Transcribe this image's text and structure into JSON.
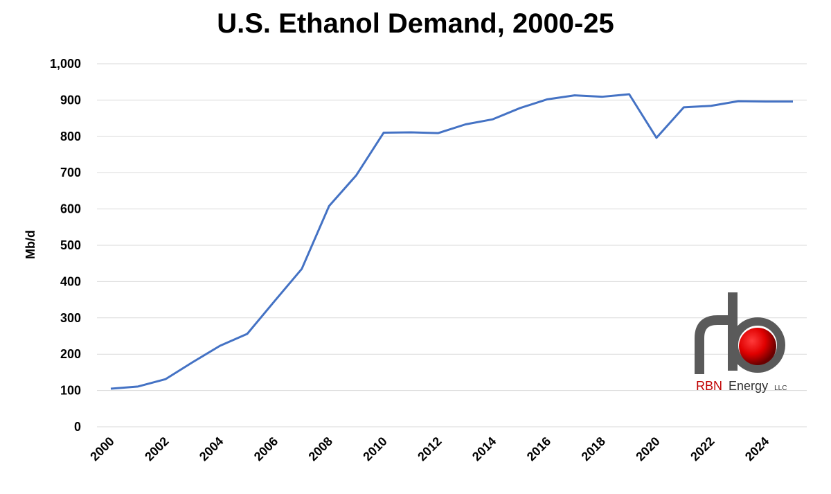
{
  "chart_data": {
    "type": "line",
    "title": "U.S. Ethanol Demand, 2000-25",
    "xlabel": "",
    "ylabel": "Mb/d",
    "ylim": [
      0,
      1000
    ],
    "yticks": [
      "0",
      "100",
      "200",
      "300",
      "400",
      "500",
      "600",
      "700",
      "800",
      "900",
      "1,000"
    ],
    "xticks": [
      "2000",
      "2002",
      "2004",
      "2006",
      "2008",
      "2010",
      "2012",
      "2014",
      "2016",
      "2018",
      "2020",
      "2022",
      "2024"
    ],
    "grid": true,
    "line_color": "#4472C4",
    "x": [
      2000,
      2001,
      2002,
      2003,
      2004,
      2005,
      2006,
      2007,
      2008,
      2009,
      2010,
      2011,
      2012,
      2013,
      2014,
      2015,
      2016,
      2017,
      2018,
      2019,
      2020,
      2021,
      2022,
      2023,
      2024,
      2025
    ],
    "series": [
      {
        "values": [
          105,
          111,
          131,
          178,
          223,
          256,
          346,
          435,
          608,
          693,
          810,
          811,
          809,
          833,
          847,
          878,
          902,
          913,
          909,
          916,
          796,
          880,
          884,
          897,
          896,
          896
        ]
      }
    ]
  },
  "logo": {
    "name": "RBN Energy LLC",
    "word1": "RBN",
    "word2": "Energy",
    "suffix": "LLC",
    "brand_red": "#C00000",
    "pipe_gray": "#6b6b6b"
  }
}
